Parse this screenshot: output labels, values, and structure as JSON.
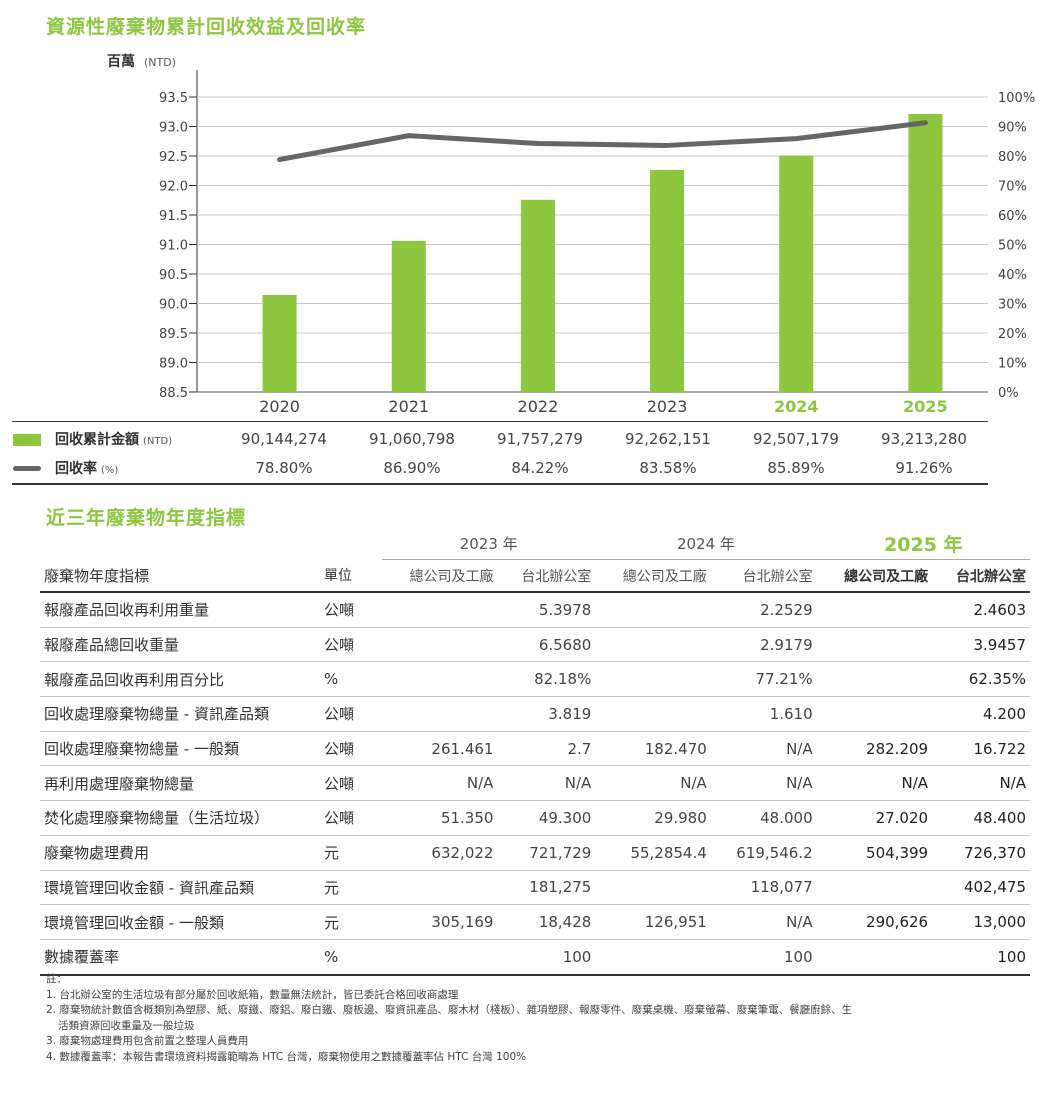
{
  "chart_title": "資源性廢棄物累計回收效益及回收率",
  "chart_data": {
    "type": "bar",
    "categories": [
      "2020",
      "2021",
      "2022",
      "2023",
      "2024",
      "2025"
    ],
    "highlight_categories": [
      "2024",
      "2025"
    ],
    "y_left_label": "百萬",
    "y_left_unit": "(NTD)",
    "y_left_ticks": [
      "93.5",
      "93.0",
      "92.5",
      "92.0",
      "91.5",
      "91.0",
      "90.5",
      "90.0",
      "89.5",
      "89.0",
      "88.5"
    ],
    "y_left_range": [
      88.5,
      93.5
    ],
    "y_right_ticks": [
      "100%",
      "90%",
      "80%",
      "70%",
      "60%",
      "50%",
      "40%",
      "30%",
      "20%",
      "10%",
      "0%"
    ],
    "y_right_range": [
      0,
      100
    ],
    "grid": true,
    "series": [
      {
        "name": "回收累計金額",
        "kind": "bar",
        "axis": "left",
        "color": "#8dc63f",
        "values": [
          90.144274,
          91.060798,
          91.757279,
          92.262151,
          92.507179,
          93.21328
        ]
      },
      {
        "name": "回收率",
        "kind": "line",
        "axis": "right",
        "color": "#666666",
        "values": [
          78.8,
          86.9,
          84.22,
          83.58,
          85.89,
          91.26
        ]
      }
    ]
  },
  "legend_rows": [
    {
      "label": "回收累計金額",
      "unit": "(NTD)",
      "values": [
        "90,144,274",
        "91,060,798",
        "91,757,279",
        "92,262,151",
        "92,507,179",
        "93,213,280"
      ]
    },
    {
      "label": "回收率",
      "unit": "(%)",
      "values": [
        "78.80%",
        "86.90%",
        "84.22%",
        "83.58%",
        "85.89%",
        "91.26%"
      ]
    }
  ],
  "section_title": "近三年廢棄物年度指標",
  "table": {
    "years": [
      "2023 年",
      "2024 年",
      "2025 年"
    ],
    "headers": [
      "廢棄物年度指標",
      "單位",
      "總公司及工廠",
      "台北辦公室",
      "總公司及工廠",
      "台北辦公室",
      "總公司及工廠",
      "台北辦公室"
    ],
    "rows": [
      [
        "報廢產品回收再利用重量",
        "公噸",
        "",
        "5.3978",
        "",
        "2.2529",
        "",
        "2.4603"
      ],
      [
        "報廢產品總回收重量",
        "公噸",
        "",
        "6.5680",
        "",
        "2.9179",
        "",
        "3.9457"
      ],
      [
        "報廢產品回收再利用百分比",
        "%",
        "",
        "82.18%",
        "",
        "77.21%",
        "",
        "62.35%"
      ],
      [
        "回收處理廢棄物總量 - 資訊產品類",
        "公噸",
        "",
        "3.819",
        "",
        "1.610",
        "",
        "4.200"
      ],
      [
        "回收處理廢棄物總量 - 一般類",
        "公噸",
        "261.461",
        "2.7",
        "182.470",
        "N/A",
        "282.209",
        "16.722"
      ],
      [
        "再利用處理廢棄物總量",
        "公噸",
        "N/A",
        "N/A",
        "N/A",
        "N/A",
        "N/A",
        "N/A"
      ],
      [
        "焚化處理廢棄物總量（生活垃圾）",
        "公噸",
        "51.350",
        "49.300",
        "29.980",
        "48.000",
        "27.020",
        "48.400"
      ],
      [
        "廢棄物處理費用",
        "元",
        "632,022",
        "721,729",
        "55,2854.4",
        "619,546.2",
        "504,399",
        "726,370"
      ],
      [
        "環境管理回收金額 - 資訊產品類",
        "元",
        "",
        "181,275",
        "",
        "118,077",
        "",
        "402,475"
      ],
      [
        "環境管理回收金額 - 一般類",
        "元",
        "305,169",
        "18,428",
        "126,951",
        "N/A",
        "290,626",
        "13,000"
      ],
      [
        "數據覆蓋率",
        "%",
        "",
        "100",
        "",
        "100",
        "",
        "100"
      ]
    ]
  },
  "notes": {
    "heading": "註：",
    "items": [
      "1. 台北辦公室的生活垃圾有部分屬於回收紙箱，數量無法統計，皆已委託合格回收商處理",
      "2. 廢棄物統計數值含概類別為塑膠、紙、廢鐵、廢鋁、廢白鐵、廢板邊、廢資訊產品、廢木材（棧板）、雜項塑膠、報廢零件、廢棄桌機、廢棄螢幕、廢棄筆電、餐廳廚餘、生",
      "活類資源回收重量及一般垃圾",
      "3. 廢棄物處理費用包含前置之整理人員費用",
      "4. 數據覆蓋率：本報告書環境資料揭露範疇為 HTC 台灣，廢棄物使用之數據覆蓋率佔 HTC 台灣 100%"
    ]
  }
}
